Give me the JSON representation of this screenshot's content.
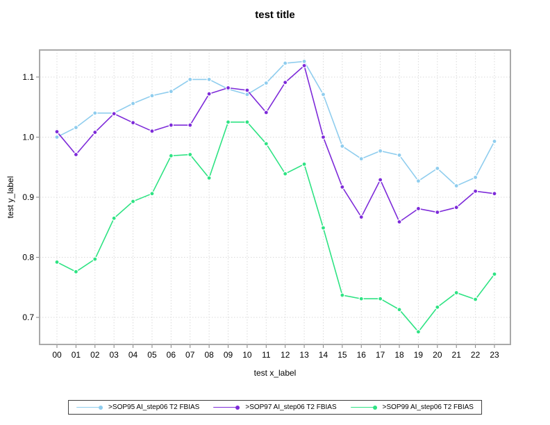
{
  "window": {
    "background": "#ffffff"
  },
  "chart_data": {
    "type": "line",
    "title": "test title",
    "xlabel": "test x_label",
    "ylabel": "test y_label",
    "x_categories": [
      "00",
      "01",
      "02",
      "03",
      "04",
      "05",
      "06",
      "07",
      "08",
      "09",
      "10",
      "11",
      "12",
      "13",
      "14",
      "15",
      "16",
      "17",
      "18",
      "19",
      "20",
      "21",
      "22",
      "23"
    ],
    "ylim": [
      0.655,
      1.145
    ],
    "yticks": [
      0.7,
      0.8,
      0.9,
      1.0,
      1.1
    ],
    "ytick_labels": [
      "0.7",
      "0.8",
      "0.9",
      "1.0",
      "1.1"
    ],
    "grid": true,
    "grid_style": "dotted",
    "legend_position": "bottom",
    "series": [
      {
        "name": ">SOP95 AI_step06 T2 FBIAS",
        "color": "#8FCDEE",
        "values": [
          1.0,
          1.016,
          1.04,
          1.04,
          1.056,
          1.069,
          1.076,
          1.096,
          1.096,
          1.08,
          1.071,
          1.09,
          1.123,
          1.126,
          1.071,
          0.985,
          0.964,
          0.977,
          0.97,
          0.927,
          0.948,
          0.919,
          0.933,
          0.993
        ]
      },
      {
        "name": ">SOP97 AI_step06 T2 FBIAS",
        "color": "#7D2AD9",
        "values": [
          1.009,
          0.971,
          1.008,
          1.039,
          1.024,
          1.01,
          1.02,
          1.02,
          1.072,
          1.082,
          1.078,
          1.041,
          1.091,
          1.119,
          1.0,
          0.917,
          0.867,
          0.929,
          0.859,
          0.881,
          0.875,
          0.883,
          0.91,
          0.906
        ]
      },
      {
        "name": ">SOP99 AI_step06 T2 FBIAS",
        "color": "#2EE383",
        "values": [
          0.792,
          0.776,
          0.797,
          0.865,
          0.893,
          0.906,
          0.969,
          0.971,
          0.932,
          1.025,
          1.025,
          0.989,
          0.939,
          0.955,
          0.849,
          0.737,
          0.731,
          0.731,
          0.713,
          0.676,
          0.717,
          0.741,
          0.73,
          0.772
        ]
      }
    ]
  },
  "colors": {
    "grid": "#d9d9d9",
    "plot_border": "#a9a9a9",
    "tick": "#7f7f7f",
    "text": "#000000",
    "legend_border": "#3c3c3c"
  }
}
